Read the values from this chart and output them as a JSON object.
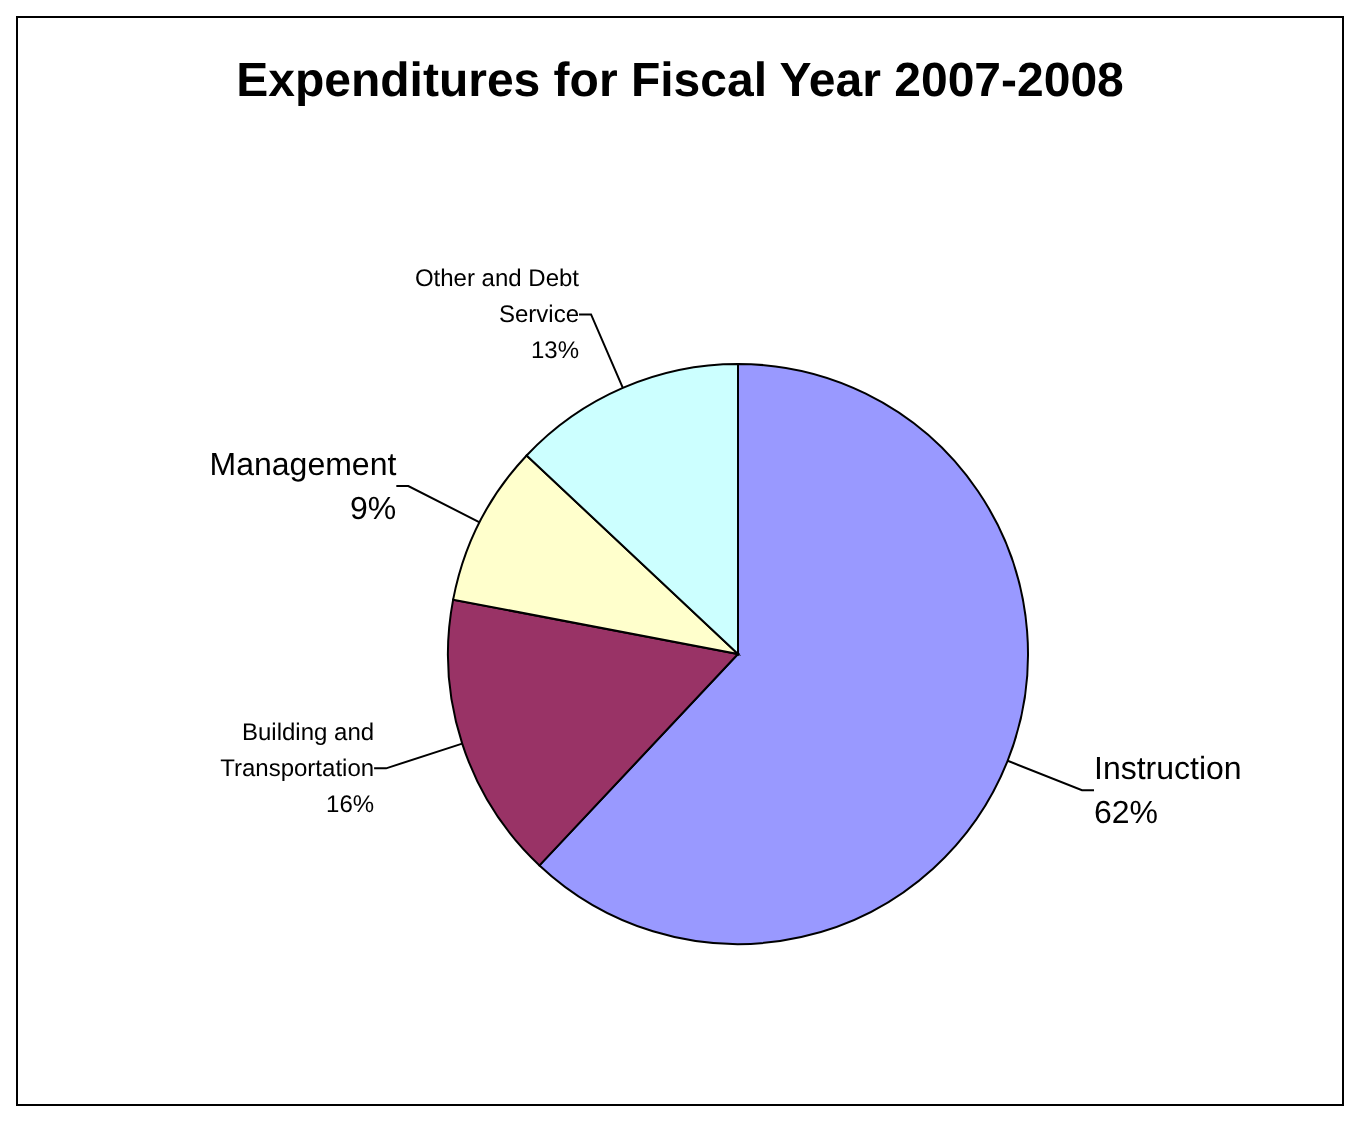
{
  "chart_data": {
    "type": "pie",
    "title": "Expenditures for Fiscal Year 2007-2008",
    "categories": [
      "Instruction",
      "Building and Transportation",
      "Management",
      "Other and Debt Service"
    ],
    "values": [
      62,
      16,
      9,
      13
    ],
    "colors": [
      "#9999ff",
      "#993366",
      "#ffffcc",
      "#ccffff"
    ],
    "value_labels": [
      "62%",
      "16%",
      "9%",
      "13%"
    ]
  }
}
